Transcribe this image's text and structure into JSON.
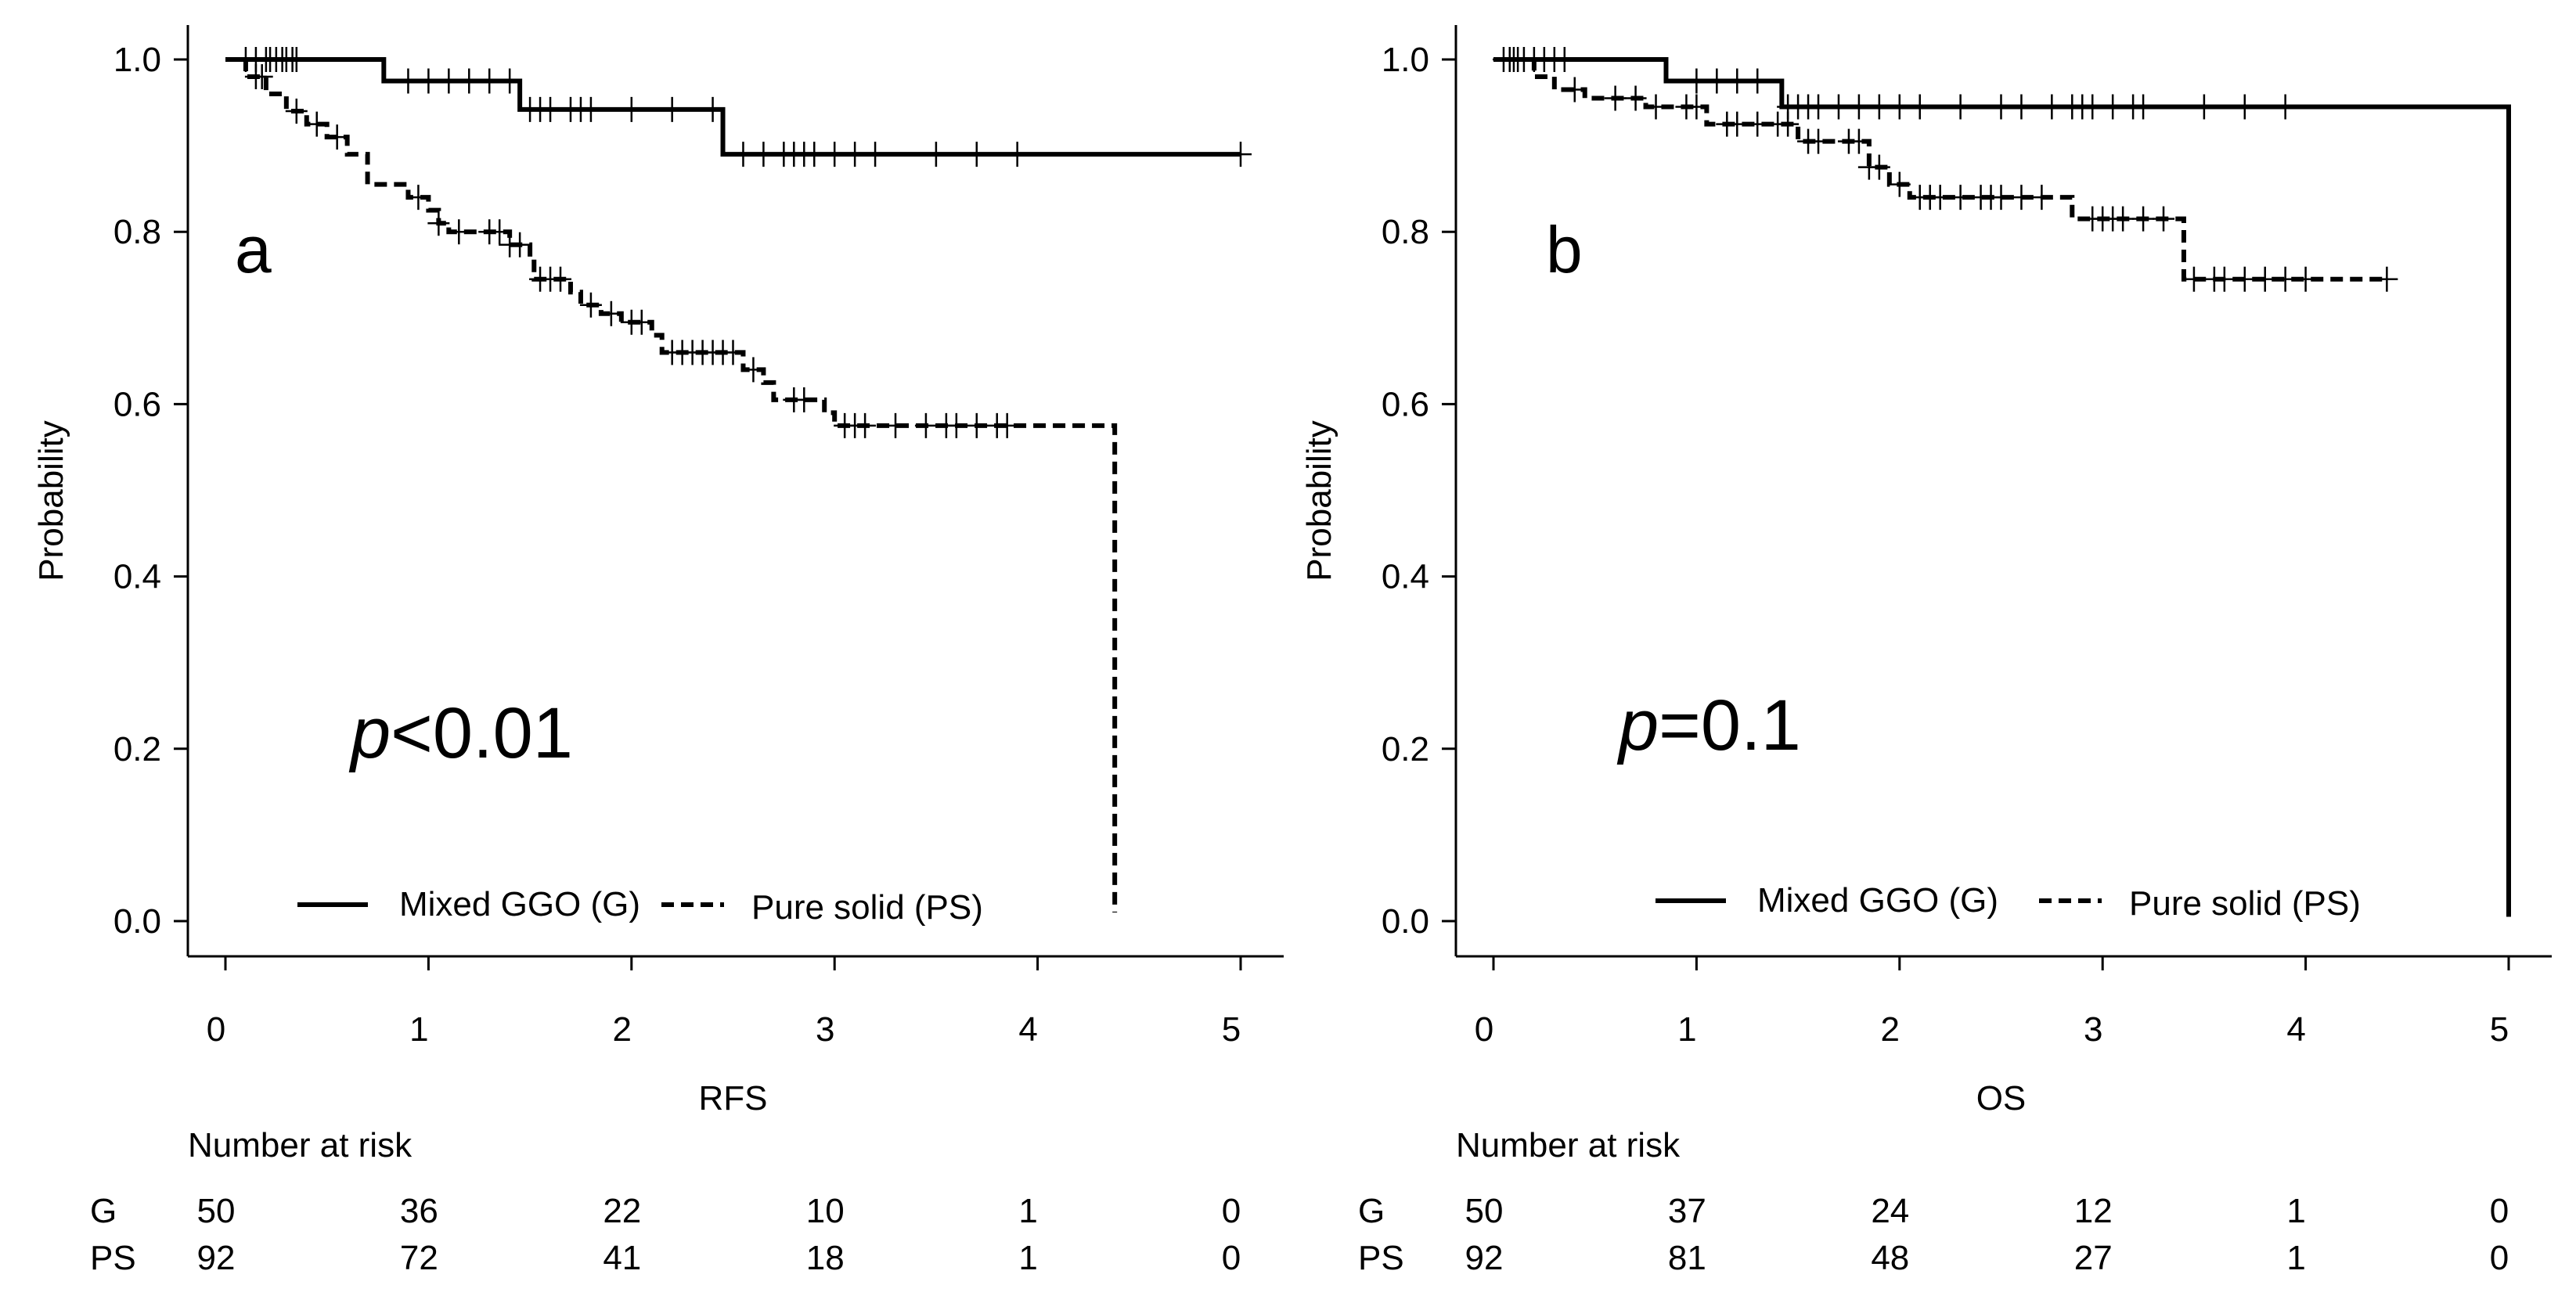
{
  "chart_data": [
    {
      "type": "line",
      "panel_label": "a",
      "xlabel": "RFS",
      "ylabel": "Probability",
      "xlim": [
        0,
        5
      ],
      "ylim": [
        0,
        1
      ],
      "x_ticks": [
        "0",
        "1",
        "2",
        "3",
        "4",
        "5"
      ],
      "y_ticks": [
        "0.0",
        "0.2",
        "0.4",
        "0.6",
        "0.8",
        "1.0"
      ],
      "p_symbol": "p",
      "p_rest": "<0.01",
      "legend": [
        "Mixed GGO (G)",
        "Pure solid (PS)"
      ],
      "series": [
        {
          "name": "Mixed GGO (G)",
          "style": "solid",
          "steps": [
            [
              0.0,
              1.0
            ],
            [
              0.78,
              0.975
            ],
            [
              1.45,
              0.942
            ],
            [
              2.45,
              0.89
            ],
            [
              5.0,
              0.89
            ]
          ],
          "censor_x": [
            0.1,
            0.15,
            0.2,
            0.22,
            0.25,
            0.28,
            0.3,
            0.33,
            0.35,
            0.9,
            1.0,
            1.1,
            1.2,
            1.3,
            1.4,
            1.5,
            1.55,
            1.6,
            1.7,
            1.75,
            1.8,
            2.0,
            2.2,
            2.4,
            2.55,
            2.65,
            2.75,
            2.8,
            2.85,
            2.9,
            3.0,
            3.1,
            3.2,
            3.5,
            3.7,
            3.9,
            5.0
          ]
        },
        {
          "name": "Pure solid (PS)",
          "style": "dashed",
          "steps": [
            [
              0.0,
              1.0
            ],
            [
              0.1,
              0.98
            ],
            [
              0.2,
              0.96
            ],
            [
              0.3,
              0.94
            ],
            [
              0.4,
              0.925
            ],
            [
              0.5,
              0.91
            ],
            [
              0.6,
              0.89
            ],
            [
              0.7,
              0.855
            ],
            [
              0.9,
              0.84
            ],
            [
              1.0,
              0.825
            ],
            [
              1.05,
              0.81
            ],
            [
              1.1,
              0.8
            ],
            [
              1.4,
              0.785
            ],
            [
              1.5,
              0.765
            ],
            [
              1.52,
              0.745
            ],
            [
              1.7,
              0.73
            ],
            [
              1.75,
              0.715
            ],
            [
              1.85,
              0.705
            ],
            [
              1.95,
              0.695
            ],
            [
              2.1,
              0.68
            ],
            [
              2.15,
              0.66
            ],
            [
              2.55,
              0.64
            ],
            [
              2.65,
              0.625
            ],
            [
              2.7,
              0.605
            ],
            [
              2.95,
              0.59
            ],
            [
              3.0,
              0.575
            ],
            [
              4.38,
              0.575
            ],
            [
              4.38,
              0.01
            ]
          ],
          "censor_x": [
            0.15,
            0.18,
            0.35,
            0.45,
            0.55,
            0.95,
            1.05,
            1.15,
            1.3,
            1.35,
            1.4,
            1.45,
            1.55,
            1.6,
            1.65,
            1.8,
            1.9,
            2.0,
            2.05,
            2.2,
            2.25,
            2.3,
            2.35,
            2.4,
            2.45,
            2.5,
            2.6,
            2.8,
            2.85,
            3.05,
            3.1,
            3.15,
            3.3,
            3.45,
            3.55,
            3.6,
            3.7,
            3.8,
            3.85
          ]
        }
      ],
      "risk_table": {
        "title": "Number at risk",
        "rows": [
          {
            "label": "G",
            "values": [
              "50",
              "36",
              "22",
              "10",
              "1",
              "0"
            ]
          },
          {
            "label": "PS",
            "values": [
              "92",
              "72",
              "41",
              "18",
              "1",
              "0"
            ]
          }
        ]
      }
    },
    {
      "type": "line",
      "panel_label": "b",
      "xlabel": "OS",
      "ylabel": "Probability",
      "xlim": [
        0,
        5
      ],
      "ylim": [
        0,
        1
      ],
      "x_ticks": [
        "0",
        "1",
        "2",
        "3",
        "4",
        "5"
      ],
      "y_ticks": [
        "0.0",
        "0.2",
        "0.4",
        "0.6",
        "0.8",
        "1.0"
      ],
      "p_symbol": "p",
      "p_rest": "=0.1",
      "legend": [
        "Mixed GGO (G)",
        "Pure solid (PS)"
      ],
      "series": [
        {
          "name": "Mixed GGO (G)",
          "style": "solid",
          "steps": [
            [
              0.0,
              1.0
            ],
            [
              0.85,
              0.975
            ],
            [
              1.42,
              0.945
            ],
            [
              5.0,
              0.945
            ],
            [
              5.0,
              0.005
            ]
          ],
          "censor_x": [
            0.05,
            0.08,
            0.12,
            0.15,
            0.2,
            0.25,
            0.3,
            0.35,
            1.0,
            1.1,
            1.2,
            1.3,
            1.45,
            1.5,
            1.55,
            1.6,
            1.7,
            1.8,
            1.9,
            2.0,
            2.1,
            2.3,
            2.5,
            2.6,
            2.75,
            2.85,
            2.9,
            2.95,
            3.05,
            3.15,
            3.2,
            3.5,
            3.7,
            3.9
          ]
        },
        {
          "name": "Pure solid (PS)",
          "style": "dashed",
          "steps": [
            [
              0.0,
              1.0
            ],
            [
              0.2,
              0.98
            ],
            [
              0.3,
              0.965
            ],
            [
              0.45,
              0.955
            ],
            [
              0.75,
              0.945
            ],
            [
              1.05,
              0.925
            ],
            [
              1.5,
              0.905
            ],
            [
              1.85,
              0.875
            ],
            [
              1.95,
              0.855
            ],
            [
              2.05,
              0.84
            ],
            [
              2.85,
              0.815
            ],
            [
              3.4,
              0.745
            ],
            [
              4.4,
              0.745
            ]
          ],
          "censor_x": [
            0.1,
            0.4,
            0.6,
            0.7,
            0.8,
            0.95,
            1.0,
            1.15,
            1.2,
            1.3,
            1.4,
            1.45,
            1.55,
            1.6,
            1.75,
            1.8,
            1.85,
            1.9,
            2.0,
            2.1,
            2.15,
            2.2,
            2.3,
            2.4,
            2.45,
            2.5,
            2.6,
            2.7,
            2.95,
            3.0,
            3.05,
            3.1,
            3.2,
            3.3,
            3.45,
            3.55,
            3.6,
            3.7,
            3.8,
            3.9,
            4.0,
            4.4
          ]
        }
      ],
      "risk_table": {
        "title": "Number at risk",
        "rows": [
          {
            "label": "G",
            "values": [
              "50",
              "37",
              "24",
              "12",
              "1",
              "0"
            ]
          },
          {
            "label": "PS",
            "values": [
              "92",
              "81",
              "48",
              "27",
              "1",
              "0"
            ]
          }
        ]
      }
    }
  ]
}
